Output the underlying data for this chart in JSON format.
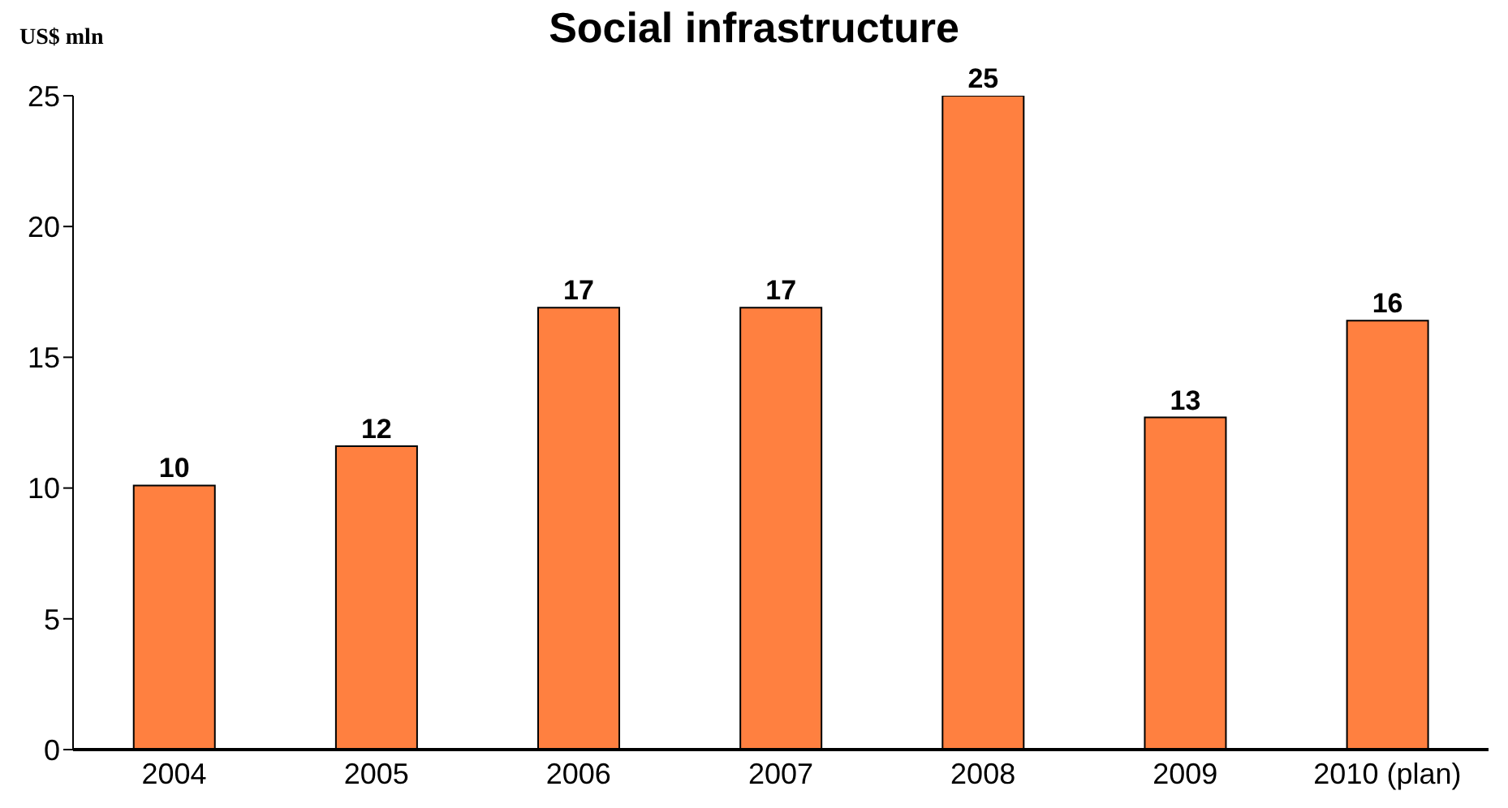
{
  "chart_data": {
    "type": "bar",
    "title": "Social infrastructure",
    "ylabel": "US$ mln",
    "categories": [
      "2004",
      "2005",
      "2006",
      "2007",
      "2008",
      "2009",
      "2010 (plan)"
    ],
    "values": [
      10.1,
      11.6,
      16.9,
      16.9,
      25,
      12.7,
      16.4
    ],
    "value_labels": [
      "10",
      "12",
      "17",
      "17",
      "25",
      "13",
      "16"
    ],
    "color": "#ff8040",
    "ylim": [
      0,
      25
    ],
    "yticks": [
      0,
      5,
      10,
      15,
      20,
      25
    ],
    "grid": false,
    "legend": false
  }
}
